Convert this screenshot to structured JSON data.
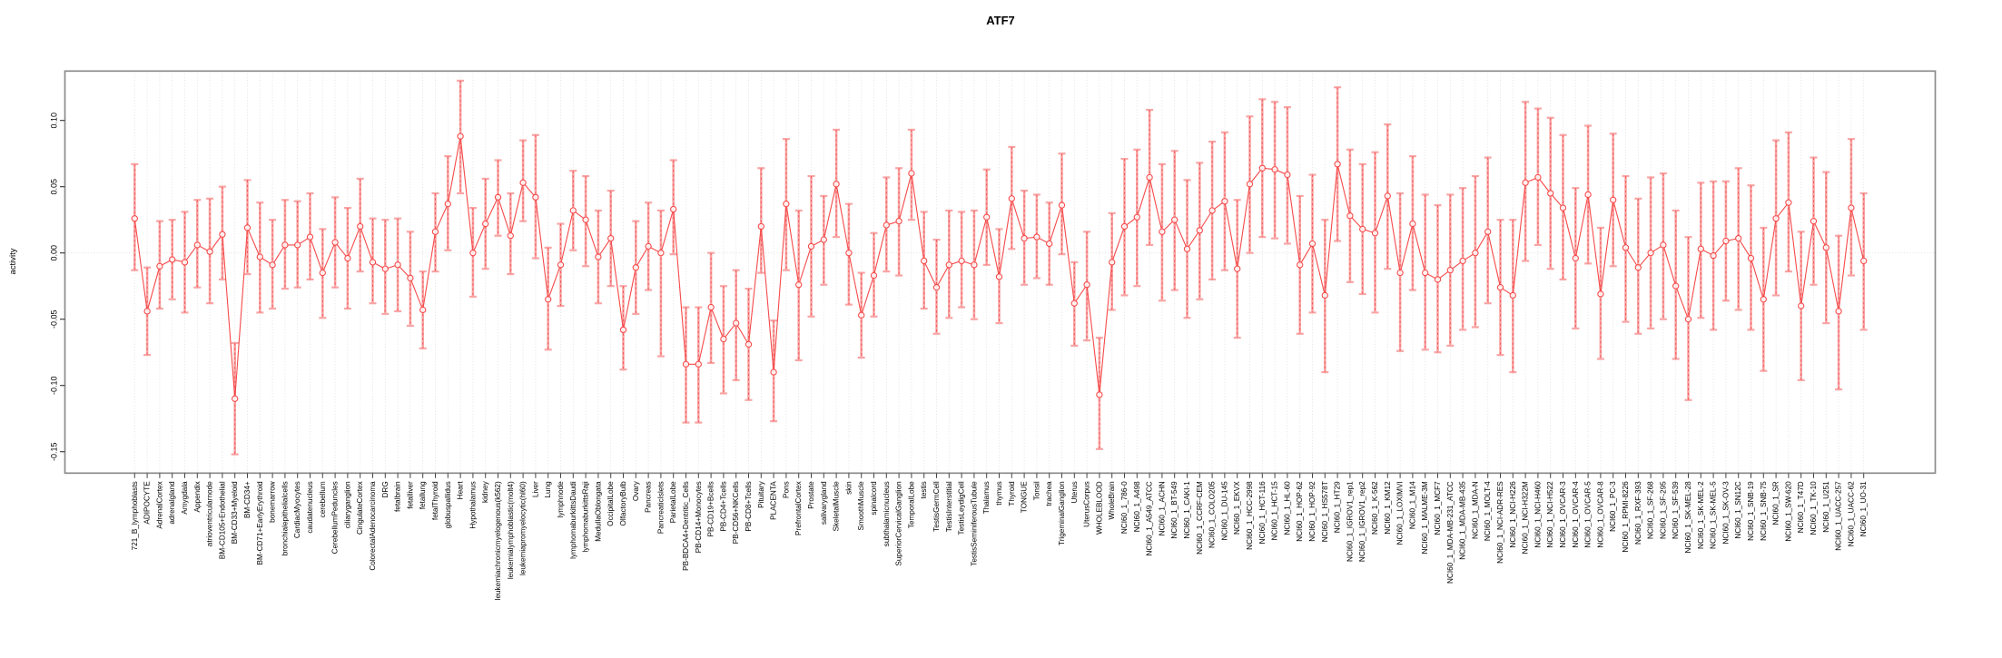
{
  "title": "ATF7",
  "chart_data": {
    "type": "line",
    "title": "ATF7",
    "xlabel": "",
    "ylabel": "activity",
    "ylim": [
      -0.17,
      0.135
    ],
    "yticks": [
      0.1,
      0.05,
      0.0,
      -0.05,
      -0.1,
      -0.15
    ],
    "ytick_labels": [
      "0.10",
      "0.05",
      "0.00",
      "-0.05",
      "-0.10",
      "-0.15"
    ],
    "grid": "vertical dotted gridline per category; dotted horizontal line at 0",
    "legend": "none",
    "marker": "open-circle",
    "error_bars": true,
    "colors": {
      "series_line": "#f64a4a",
      "marker_stroke": "#f64a4a",
      "error_bar_pale": "#f8a5a5",
      "error_bar_core": "#f64a4a",
      "grid": "#dcdcdc",
      "box": "#8c8c8c",
      "text": "#000000",
      "background": "#ffffff"
    },
    "categories": [
      "721_B_lymphoblasts",
      "ADIPOCYTE",
      "AdrenalCortex",
      "adrenalgland",
      "Amygdala",
      "Appendix",
      "atrioventricularnode",
      "BM-CD105+Endothelial",
      "BM-CD33+Myeloid",
      "BM-CD34+",
      "BM-CD71+EarlyErythroid",
      "bonemarrow",
      "bronchialepithelialcells",
      "CardiacMyocytes",
      "caudatenucleus",
      "cerebellum",
      "CerebellumPeduncles",
      "ciliaryganglion",
      "CingulateCortex",
      "ColorectalAdenocarcinoma",
      "DRG",
      "fetalbrain",
      "fetalliver",
      "fetallung",
      "fetalThyroid",
      "globuspallidus",
      "Heart",
      "Hypothalamus",
      "kidney",
      "leukemiachronicmyelogenous(k562)",
      "leukemialymphoblastic(molt4)",
      "leukemiapromyelocytic(hl60)",
      "Liver",
      "Lung",
      "lymphnode",
      "lymphomaburkittsDaudi",
      "lymphomaburkittsRaji",
      "MedullaOblongata",
      "OccipitalLobe",
      "OlfactoryBulb",
      "Ovary",
      "Pancreas",
      "PancreaticIslets",
      "ParietalLobe",
      "PB-BDCA4+Dentritic_Cells",
      "PB-CD14+Monocytes",
      "PB-CD19+Bcells",
      "PB-CD4+Tcells",
      "PB-CD56+NKCells",
      "PB-CD8+Tcells",
      "Pituitary",
      "PLACENTA",
      "Pons",
      "PrefrontalCortex",
      "Prostate",
      "salivarygland",
      "SkeletalMuscle",
      "skin",
      "SmoothMuscle",
      "spinalcord",
      "subthalamicnucleus",
      "SuperiorCervicalGanglion",
      "TemporalLobe",
      "testis",
      "TestisGermCell",
      "TestisInterstitial",
      "TestisLeydigCell",
      "TestisSeminiferousTubule",
      "Thalamus",
      "thymus",
      "Thyroid",
      "TONGUE",
      "Tonsil",
      "trachea",
      "TrigeminalGanglion",
      "Uterus",
      "UterusCorpus",
      "WHOLEBLOOD",
      "WholeBrain",
      "NCI60_1_786-0",
      "NCI60_1_A498",
      "NCI60_1_A549_ATCC",
      "NCI60_1_ACHN",
      "NCI60_1_BT-549",
      "NCI60_1_CAKI-1",
      "NCI60_1_CCRF-CEM",
      "NCI60_1_COLO205",
      "NCI60_1_DU-145",
      "NCI60_1_EKVX",
      "NCI60_1_HCC-2998",
      "NCI60_1_HCT-116",
      "NCI60_1_HCT-15",
      "NCI60_1_HL-60",
      "NCI60_1_HOP-62",
      "NCI60_1_HOP-92",
      "NCI60_1_HS578T",
      "NCI60_1_HT29",
      "NCI60_1_IGROV1_rep1",
      "NCI60_1_IGROV1_rep2",
      "NCI60_1_K-562",
      "NCI60_1_KM12",
      "NCI60_1_LOXIMVI",
      "NCI60_1_M14",
      "NCI60_1_MALME-3M",
      "NCI60_1_MCF7",
      "NCI60_1_MDA-MB-231_ATCC",
      "NCI60_1_MDA-MB-435",
      "NCI60_1_MDA-N",
      "NCI60_1_MOLT-4",
      "NCI60_1_NCI-ADR-RES",
      "NCI60_1_NCI-H226",
      "NCI60_1_NCI-H322M",
      "NCI60_1_NCI-H460",
      "NCI60_1_NCI-H522",
      "NCI60_1_OVCAR-3",
      "NCI60_1_OVCAR-4",
      "NCI60_1_OVCAR-5",
      "NCI60_1_OVCAR-8",
      "NCI60_1_PC-3",
      "NCI60_1_RPMI-8226",
      "NCI60_1_RXF-393",
      "NCI60_1_SF-268",
      "NCI60_1_SF-295",
      "NCI60_1_SF-539",
      "NCI60_1_SK-MEL-28",
      "NCI60_1_SK-MEL-2",
      "NCI60_1_SK-MEL-5",
      "NCI60_1_SK-OV-3",
      "NCI60_1_SN12C",
      "NCI60_1_SNB-19",
      "NCI60_1_SNB-75",
      "NCI60_1_SR",
      "NCI60_1_SW-620",
      "NCI60_1_T47D",
      "NCI60_1_TK-10",
      "NCI60_1_U251",
      "NCI60_1_UACC-257",
      "NCI60_1_UACC-62",
      "NCI60_1_UO-31"
    ],
    "series": [
      {
        "name": "activity",
        "values": [
          0.026,
          -0.044,
          -0.01,
          -0.005,
          -0.007,
          0.006,
          0.001,
          0.014,
          -0.11,
          0.019,
          -0.003,
          -0.009,
          0.006,
          0.006,
          0.012,
          -0.015,
          0.008,
          -0.004,
          0.02,
          -0.007,
          -0.012,
          -0.009,
          -0.019,
          -0.043,
          0.016,
          0.037,
          0.088,
          0.0,
          0.022,
          0.042,
          0.013,
          0.053,
          0.042,
          -0.035,
          -0.009,
          0.032,
          0.025,
          -0.003,
          0.011,
          -0.058,
          -0.011,
          0.005,
          0.0,
          0.033,
          -0.084,
          -0.084,
          -0.041,
          -0.065,
          -0.053,
          -0.069,
          0.02,
          -0.09,
          0.037,
          -0.024,
          0.005,
          0.01,
          0.052,
          0.0,
          -0.047,
          -0.017,
          0.021,
          0.024,
          0.06,
          -0.006,
          -0.026,
          -0.009,
          -0.006,
          -0.009,
          0.027,
          -0.018,
          0.041,
          0.011,
          0.012,
          0.007,
          0.036,
          -0.038,
          -0.024,
          -0.107,
          -0.007,
          0.02,
          0.027,
          0.057,
          0.016,
          0.025,
          0.003,
          0.017,
          0.032,
          0.039,
          -0.012,
          0.052,
          0.064,
          0.063,
          0.059,
          -0.009,
          0.007,
          -0.032,
          0.067,
          0.028,
          0.018,
          0.015,
          0.043,
          -0.015,
          0.022,
          -0.015,
          -0.02,
          -0.013,
          -0.006,
          0.0,
          0.016,
          -0.026,
          -0.032,
          0.053,
          0.057,
          0.045,
          0.034,
          -0.004,
          0.044,
          -0.031,
          0.04,
          0.004,
          -0.011,
          0.0,
          0.006,
          -0.025,
          -0.05,
          0.003,
          -0.002,
          0.009,
          0.011,
          -0.004,
          -0.035,
          0.026,
          0.038,
          -0.04,
          0.024,
          0.004,
          -0.044,
          0.034,
          -0.006
        ]
      }
    ],
    "error_low": [
      -0.013,
      -0.077,
      -0.042,
      -0.035,
      -0.045,
      -0.026,
      -0.038,
      -0.02,
      -0.152,
      -0.016,
      -0.045,
      -0.042,
      -0.027,
      -0.026,
      -0.02,
      -0.049,
      -0.026,
      -0.042,
      -0.014,
      -0.038,
      -0.046,
      -0.044,
      -0.055,
      -0.072,
      -0.014,
      0.002,
      0.045,
      -0.033,
      -0.012,
      0.013,
      -0.016,
      0.024,
      -0.004,
      -0.073,
      -0.04,
      0.002,
      -0.01,
      -0.038,
      -0.025,
      -0.088,
      -0.046,
      -0.028,
      -0.078,
      -0.001,
      -0.128,
      -0.128,
      -0.083,
      -0.106,
      -0.096,
      -0.111,
      -0.015,
      -0.127,
      -0.013,
      -0.081,
      -0.048,
      -0.024,
      0.012,
      -0.039,
      -0.079,
      -0.048,
      -0.014,
      -0.017,
      0.025,
      -0.042,
      -0.061,
      -0.049,
      -0.041,
      -0.05,
      -0.009,
      -0.053,
      0.003,
      -0.024,
      -0.019,
      -0.024,
      -0.001,
      -0.07,
      -0.066,
      -0.148,
      -0.043,
      -0.032,
      -0.025,
      0.006,
      -0.036,
      -0.028,
      -0.049,
      -0.035,
      -0.02,
      -0.013,
      -0.064,
      0.0,
      0.012,
      0.011,
      0.007,
      -0.061,
      -0.045,
      -0.09,
      0.009,
      -0.022,
      -0.031,
      -0.045,
      -0.012,
      -0.074,
      -0.028,
      -0.073,
      -0.075,
      -0.07,
      -0.058,
      -0.056,
      -0.038,
      -0.077,
      -0.09,
      -0.006,
      0.006,
      -0.012,
      -0.02,
      -0.057,
      -0.008,
      -0.08,
      -0.01,
      -0.052,
      -0.061,
      -0.057,
      -0.05,
      -0.08,
      -0.111,
      -0.049,
      -0.058,
      -0.036,
      -0.043,
      -0.058,
      -0.089,
      -0.032,
      -0.014,
      -0.096,
      -0.024,
      -0.053,
      -0.103,
      -0.017,
      -0.058
    ],
    "error_high": [
      0.067,
      -0.011,
      0.024,
      0.025,
      0.031,
      0.04,
      0.041,
      0.05,
      -0.068,
      0.055,
      0.038,
      0.025,
      0.04,
      0.039,
      0.045,
      0.018,
      0.042,
      0.034,
      0.056,
      0.026,
      0.025,
      0.026,
      0.016,
      -0.014,
      0.045,
      0.073,
      0.13,
      0.034,
      0.056,
      0.07,
      0.045,
      0.085,
      0.089,
      0.004,
      0.022,
      0.062,
      0.058,
      0.032,
      0.047,
      -0.025,
      0.024,
      0.038,
      0.032,
      0.07,
      -0.041,
      -0.041,
      0.0,
      -0.025,
      -0.013,
      -0.027,
      0.064,
      -0.051,
      0.086,
      0.032,
      0.058,
      0.043,
      0.093,
      0.037,
      -0.015,
      0.015,
      0.057,
      0.064,
      0.093,
      0.031,
      0.01,
      0.032,
      0.031,
      0.032,
      0.063,
      0.018,
      0.08,
      0.047,
      0.044,
      0.038,
      0.075,
      -0.007,
      0.016,
      -0.064,
      0.03,
      0.071,
      0.078,
      0.108,
      0.067,
      0.077,
      0.055,
      0.068,
      0.084,
      0.091,
      0.04,
      0.103,
      0.116,
      0.114,
      0.11,
      0.043,
      0.059,
      0.025,
      0.125,
      0.078,
      0.067,
      0.076,
      0.097,
      0.045,
      0.073,
      0.044,
      0.036,
      0.044,
      0.049,
      0.058,
      0.072,
      0.025,
      0.025,
      0.114,
      0.109,
      0.102,
      0.089,
      0.049,
      0.096,
      0.019,
      0.09,
      0.058,
      0.041,
      0.057,
      0.06,
      0.032,
      0.012,
      0.053,
      0.054,
      0.054,
      0.064,
      0.051,
      0.019,
      0.085,
      0.091,
      0.016,
      0.072,
      0.061,
      0.013,
      0.086,
      0.045
    ]
  }
}
